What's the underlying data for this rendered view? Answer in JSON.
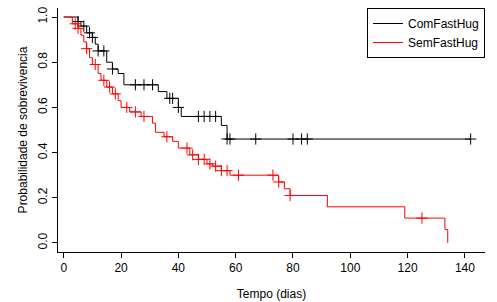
{
  "chart_data": {
    "type": "line",
    "line_style": "step",
    "marker": "cross",
    "x_label": "Tempo (dias)",
    "y_label": "Probabilidade de sobrevivencia",
    "xlim": [
      -2,
      147
    ],
    "ylim": [
      -0.04,
      1.04
    ],
    "xticks": [
      0,
      20,
      40,
      60,
      80,
      100,
      120,
      140
    ],
    "yticks": [
      {
        "value": 0,
        "label": "0.0"
      },
      0.2,
      0.4,
      0.6,
      0.8,
      {
        "value": 1,
        "label": "1.0"
      }
    ],
    "grid": false,
    "legend": "top right",
    "series": [
      {
        "name": "ComFastHug",
        "color": "#000000",
        "x": [
          0,
          5,
          6,
          8,
          10,
          11,
          12,
          15,
          17,
          19,
          21,
          33,
          36,
          40,
          41,
          55,
          57,
          142
        ],
        "values": [
          1.0,
          0.98,
          0.96,
          0.93,
          0.91,
          0.88,
          0.85,
          0.8,
          0.77,
          0.75,
          0.7,
          0.67,
          0.64,
          0.6,
          0.56,
          0.52,
          0.46,
          0.46
        ],
        "censored_x": [
          5,
          7,
          9,
          10,
          12,
          14,
          17,
          25,
          28,
          31,
          37,
          38,
          40,
          47,
          49,
          51,
          53,
          57,
          58,
          67,
          80,
          83,
          85,
          142
        ]
      },
      {
        "name": "SemFastHug",
        "color": "#ff0000",
        "x": [
          0,
          3,
          5,
          6,
          7,
          8,
          9,
          10,
          12,
          13,
          15,
          17,
          19,
          20,
          23,
          27,
          31,
          32,
          35,
          38,
          40,
          44,
          47,
          50,
          52,
          55,
          58,
          75,
          77,
          79,
          92,
          119,
          133,
          134
        ],
        "values": [
          1.0,
          0.97,
          0.95,
          0.92,
          0.89,
          0.86,
          0.82,
          0.79,
          0.75,
          0.72,
          0.69,
          0.66,
          0.63,
          0.6,
          0.58,
          0.56,
          0.53,
          0.49,
          0.47,
          0.45,
          0.42,
          0.39,
          0.37,
          0.35,
          0.34,
          0.32,
          0.3,
          0.27,
          0.24,
          0.21,
          0.16,
          0.11,
          0.06,
          0.0
        ],
        "censored_x": [
          4,
          5,
          8,
          11,
          14,
          16,
          18,
          22,
          25,
          28,
          36,
          43,
          45,
          47,
          49,
          51,
          53,
          55,
          57,
          61,
          73,
          75,
          79,
          125
        ]
      }
    ]
  }
}
